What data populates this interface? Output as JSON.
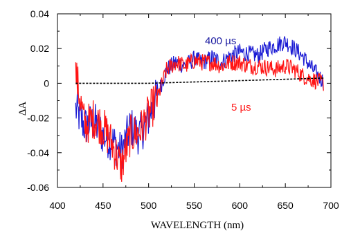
{
  "chart_data": {
    "type": "line",
    "title": "",
    "xlabel": "WAVELENGTH (nm)",
    "ylabel": "ΔA",
    "xlim": [
      400,
      700
    ],
    "ylim": [
      -0.06,
      0.04
    ],
    "x_ticks": [
      400,
      450,
      500,
      550,
      600,
      650,
      700
    ],
    "y_ticks": [
      0.04,
      0.02,
      0,
      -0.02,
      -0.04,
      -0.06
    ],
    "x_tick_labels": [
      "400",
      "450",
      "500",
      "550",
      "600",
      "650",
      "700"
    ],
    "y_tick_labels": [
      "0.04",
      "0.02",
      "0",
      "-0.02",
      "-0.04",
      "-0.06"
    ],
    "grid": false,
    "legend": "none",
    "annotations": [
      {
        "text": "400 µs",
        "color": "#1a1aa0"
      },
      {
        "text": "5 µs",
        "color": "#ff1a1a"
      }
    ],
    "series": [
      {
        "color": "#1c1cd4",
        "x": [
          420,
          430,
          440,
          450,
          460,
          470,
          480,
          490,
          500,
          510,
          520,
          530,
          540,
          550,
          560,
          570,
          580,
          590,
          600,
          610,
          620,
          630,
          640,
          650,
          660,
          670,
          680,
          692
        ],
        "y": [
          -0.015,
          -0.025,
          -0.022,
          -0.03,
          -0.033,
          -0.04,
          -0.025,
          -0.03,
          -0.02,
          -0.006,
          0.008,
          0.012,
          0.01,
          0.014,
          0.012,
          0.015,
          0.012,
          0.016,
          0.018,
          0.017,
          0.016,
          0.02,
          0.022,
          0.024,
          0.02,
          0.015,
          0.008,
          0.001
        ]
      },
      {
        "color": "#ff1414",
        "x": [
          420,
          430,
          440,
          450,
          460,
          470,
          480,
          490,
          500,
          510,
          520,
          530,
          540,
          550,
          560,
          570,
          580,
          590,
          600,
          610,
          620,
          630,
          640,
          650,
          660,
          670,
          680,
          692
        ],
        "y": [
          0.006,
          -0.025,
          -0.02,
          -0.025,
          -0.035,
          -0.048,
          -0.03,
          -0.028,
          -0.018,
          -0.008,
          0.008,
          0.012,
          0.01,
          0.013,
          0.012,
          0.012,
          0.01,
          0.012,
          0.012,
          0.01,
          0.01,
          0.009,
          0.008,
          0.01,
          0.008,
          0.004,
          0.002,
          0.0
        ]
      },
      {
        "color": "#000000",
        "style": "dashed",
        "x": [
          420,
          500,
          600,
          692
        ],
        "y": [
          0.0,
          0.0,
          0.0015,
          0.003
        ]
      }
    ]
  }
}
